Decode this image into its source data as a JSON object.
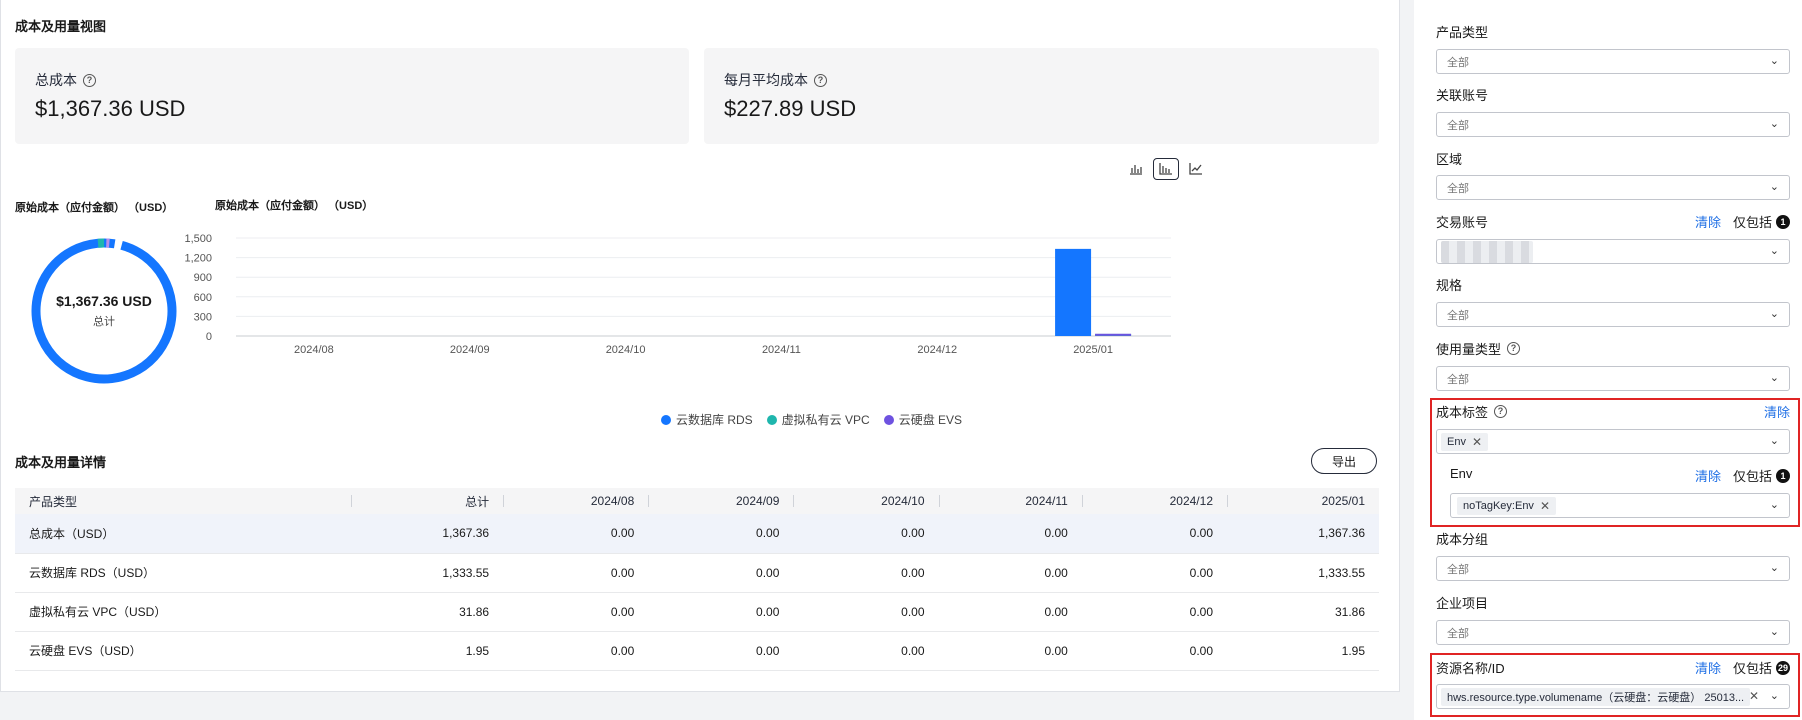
{
  "overview": {
    "title": "成本及用量视图",
    "total_cost": {
      "label": "总成本",
      "value": "$1,367.36 USD"
    },
    "avg_cost": {
      "label": "每月平均成本",
      "value": "$227.89 USD"
    }
  },
  "view_toggles": [
    {
      "icon": "bar-chart-icon",
      "glyph": "⫼"
    },
    {
      "icon": "column-chart-icon",
      "glyph": "⫾",
      "active": true
    },
    {
      "icon": "line-chart-icon",
      "glyph": "⟋"
    }
  ],
  "donut": {
    "title": "原始成本（应付金额） （USD）",
    "center_value": "$1,367.36 USD",
    "center_label": "总计"
  },
  "chart_data": {
    "type": "bar",
    "title": "原始成本（应付金额） （USD）",
    "categories": [
      "2024/08",
      "2024/09",
      "2024/10",
      "2024/11",
      "2024/12",
      "2025/01"
    ],
    "series": [
      {
        "name": "云数据库 RDS",
        "color": "#1476ff",
        "values": [
          0,
          0,
          0,
          0,
          0,
          1333.55
        ]
      },
      {
        "name": "虚拟私有云 VPC",
        "color": "#1fb6ad",
        "values": [
          0,
          0,
          0,
          0,
          0,
          31.86
        ]
      },
      {
        "name": "云硬盘 EVS",
        "color": "#6e52e0",
        "values": [
          0,
          0,
          0,
          0,
          0,
          1.95
        ]
      }
    ],
    "yticks": [
      "0",
      "300",
      "600",
      "900",
      "1,200",
      "1,500"
    ],
    "ylim": [
      0,
      1500
    ],
    "grid": true,
    "legend": "bottom"
  },
  "details": {
    "title": "成本及用量详情",
    "export_label": "导出",
    "columns": [
      "产品类型",
      "总计",
      "2024/08",
      "2024/09",
      "2024/10",
      "2024/11",
      "2024/12",
      "2025/01"
    ],
    "rows": [
      [
        "总成本（USD）",
        "1,367.36",
        "0.00",
        "0.00",
        "0.00",
        "0.00",
        "0.00",
        "1,367.36"
      ],
      [
        "云数据库 RDS（USD）",
        "1,333.55",
        "0.00",
        "0.00",
        "0.00",
        "0.00",
        "0.00",
        "1,333.55"
      ],
      [
        "虚拟私有云 VPC（USD）",
        "31.86",
        "0.00",
        "0.00",
        "0.00",
        "0.00",
        "0.00",
        "31.86"
      ],
      [
        "云硬盘 EVS（USD）",
        "1.95",
        "0.00",
        "0.00",
        "0.00",
        "0.00",
        "0.00",
        "1.95"
      ]
    ]
  },
  "filters": {
    "clear_label": "清除",
    "only_label": "仅包括",
    "all_value": "全部",
    "product_type": "产品类型",
    "linked_account": "关联账号",
    "region": "区域",
    "trade_account": {
      "label": "交易账号",
      "count": "1"
    },
    "spec": "规格",
    "usage_type": "使用量类型",
    "cost_tag": {
      "label": "成本标签",
      "tag": "Env"
    },
    "env": {
      "label": "Env",
      "count": "1",
      "tag": "noTagKey:Env"
    },
    "cost_group": "成本分组",
    "enterprise_project": "企业项目",
    "resource": {
      "label": "资源名称/ID",
      "count": "29",
      "tag": "hws.resource.type.volumename（云硬盘：云硬盘） 25013..."
    }
  }
}
